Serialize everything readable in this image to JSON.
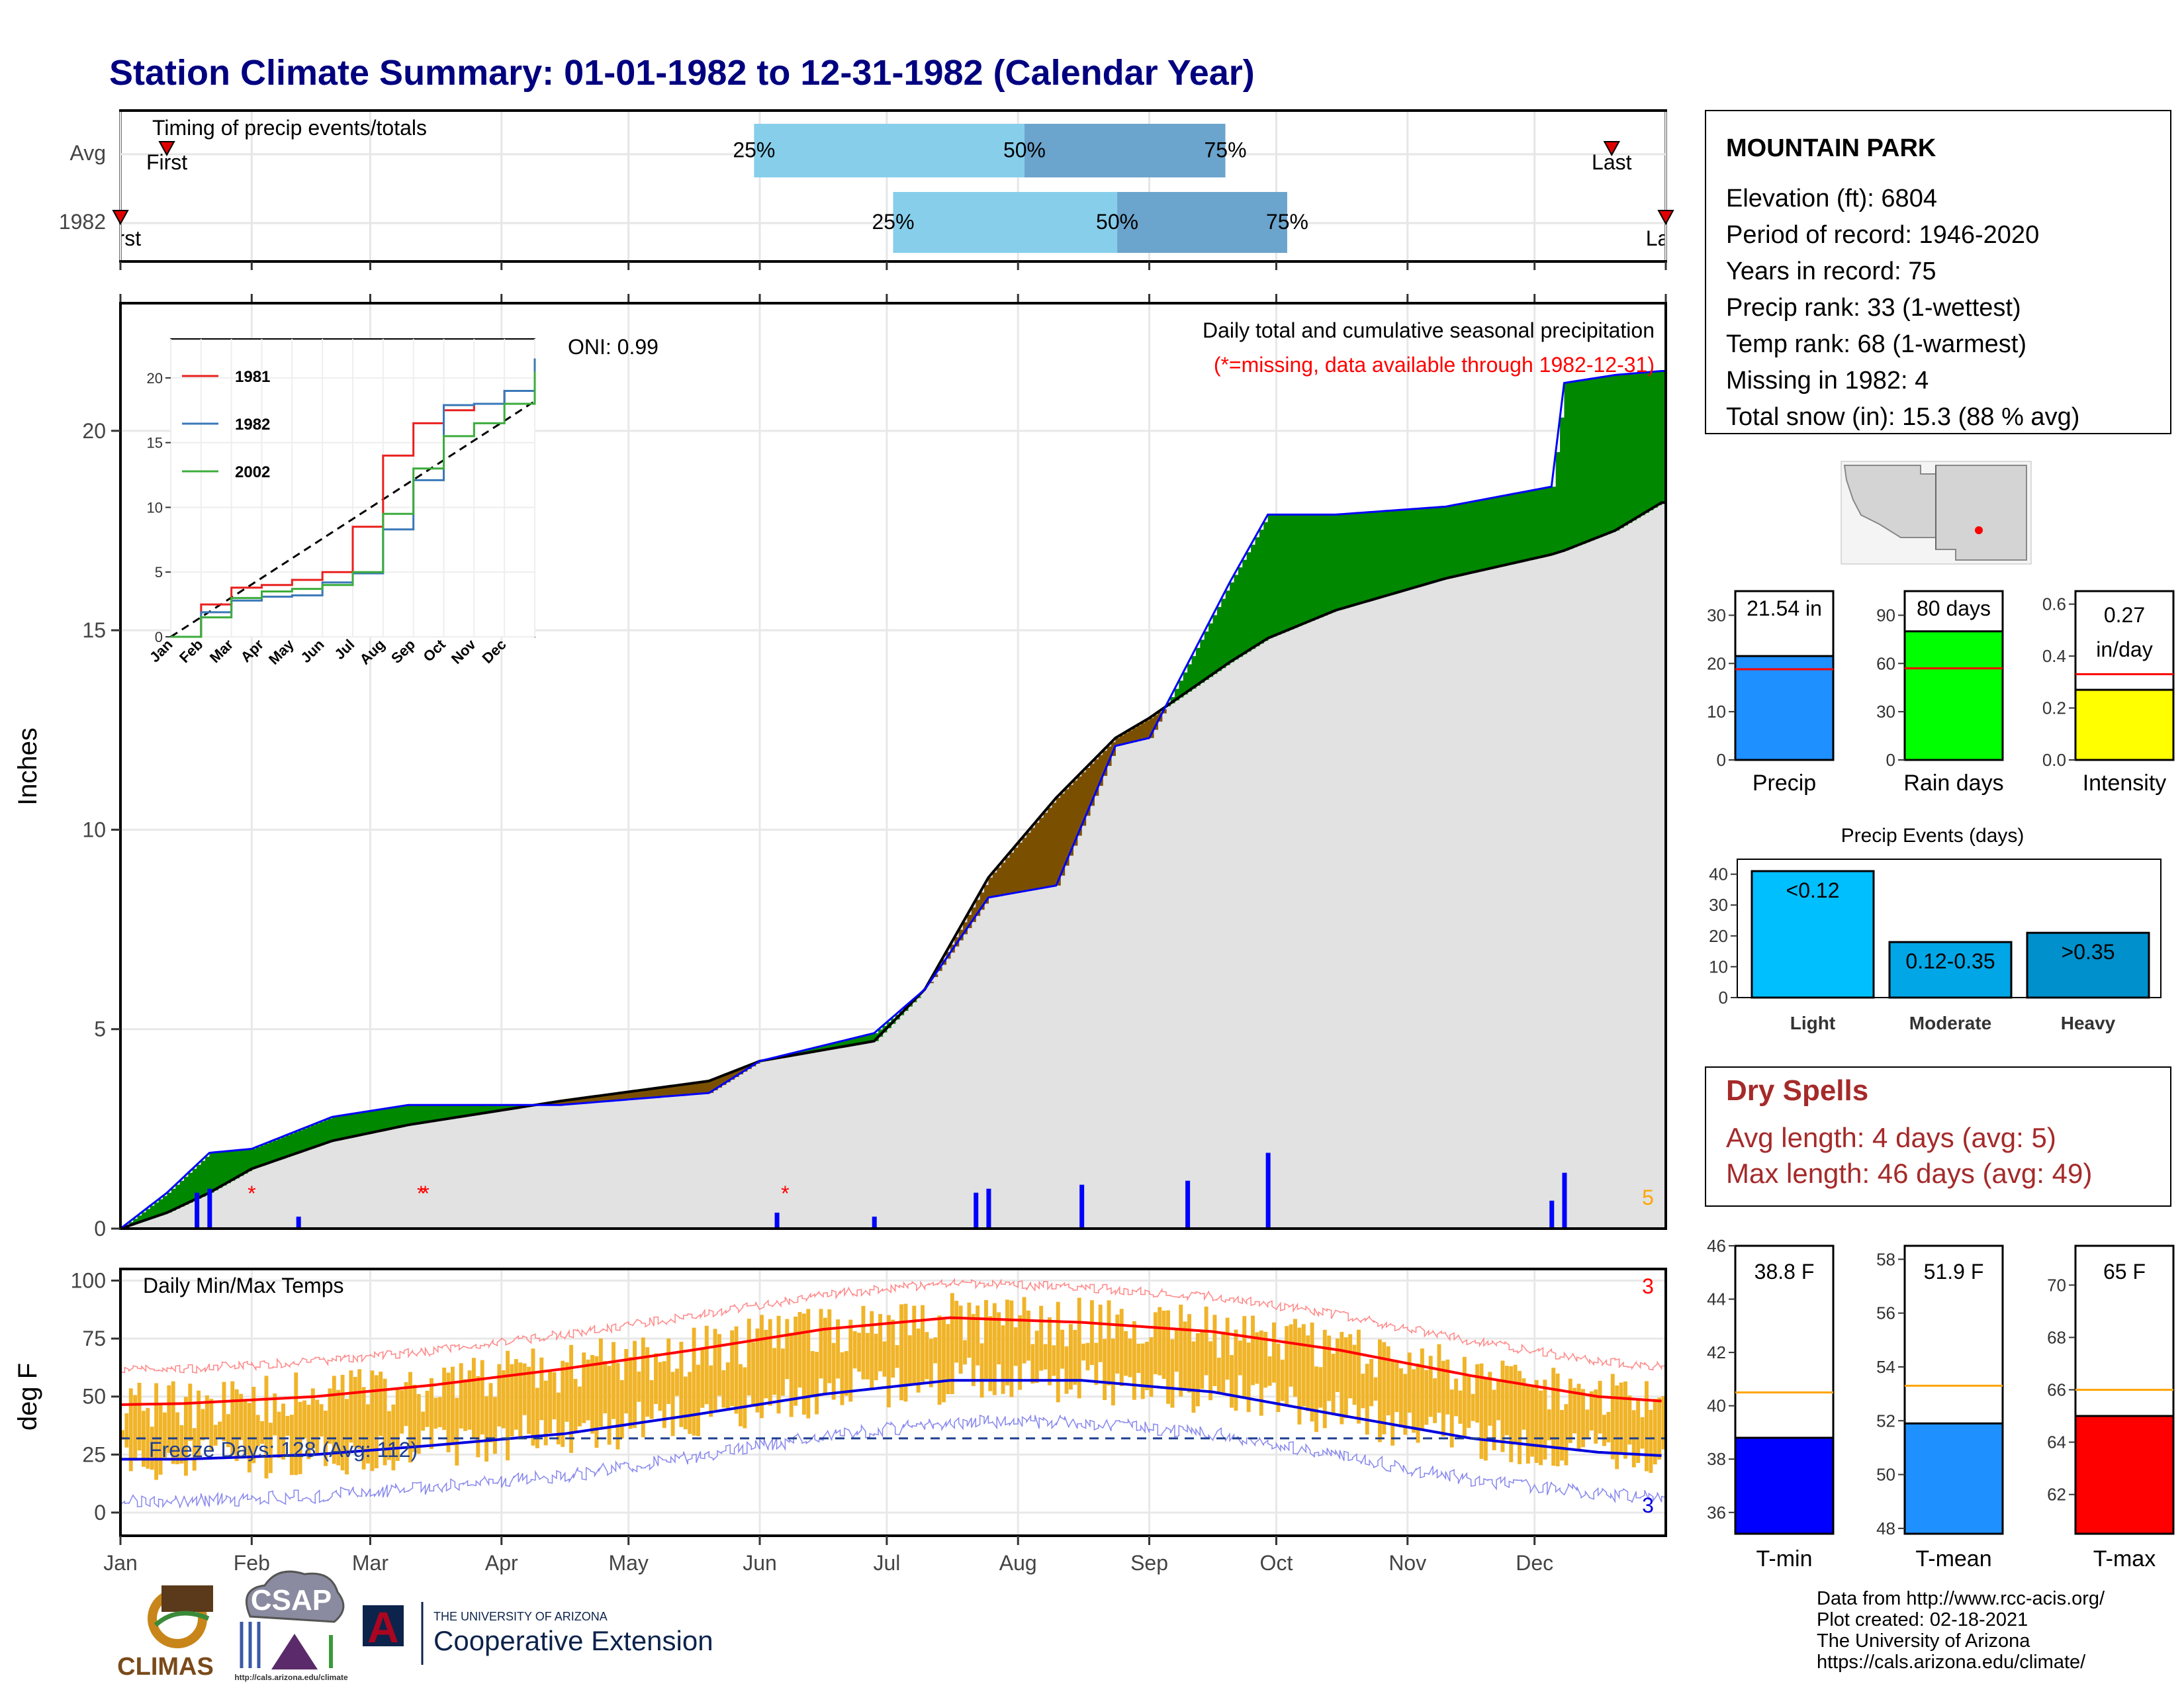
{
  "title": "Station Climate Summary: 01-01-1982 to 12-31-1982 (Calendar Year)",
  "colors": {
    "title": "#000080",
    "timing_q1": "#87ceeb",
    "timing_q2": "#6ba4cc",
    "precip_bars": "#0000ff",
    "above_avg_fill": "#008800",
    "below_avg_fill": "#7a5000",
    "normal_fill": "#e2e2e2",
    "tmax": "#ff0000",
    "tmin": "#0000dd",
    "temp_bars": "#f0b429",
    "freeze_line": "#1f3f8f",
    "dry_spells": "#a52a2a"
  },
  "timing": {
    "label": "Timing of precip events/totals",
    "rows": [
      {
        "name": "Avg",
        "first_label": "First",
        "last_label": "Last",
        "first": 0.03,
        "last": 0.965,
        "q25": 0.41,
        "q50": 0.585,
        "q75": 0.715,
        "lbl25": "25%",
        "lbl50": "50%",
        "lbl75": "75%"
      },
      {
        "name": "1982",
        "first_label": "First",
        "last_label": "Last",
        "first": 0.0,
        "last": 1.0,
        "q25": 0.5,
        "q50": 0.645,
        "q75": 0.755,
        "lbl25": "25%",
        "lbl50": "50%",
        "lbl75": "75%"
      }
    ]
  },
  "info": {
    "station": "MOUNTAIN PARK",
    "lines": [
      "Elevation (ft): 6804",
      "Period of record: 1946-2020",
      "Years in record: 75",
      "Precip rank: 33 (1-wettest)",
      "Temp rank: 68 (1-warmest)",
      "Missing in 1982: 4",
      "Total snow (in): 15.3 (88 % avg)"
    ]
  },
  "main_precip": {
    "title": "Daily total and cumulative seasonal precipitation",
    "subtitle": "(*=missing, data available through 1982-12-31)",
    "oni": "ONI: 0.99",
    "ylabel": "Inches",
    "yticks": [
      0,
      5,
      10,
      15,
      20
    ],
    "ylim": [
      0,
      23.2
    ],
    "count_label": "5"
  },
  "months": [
    "Jan",
    "Feb",
    "Mar",
    "Apr",
    "May",
    "Jun",
    "Jul",
    "Aug",
    "Sep",
    "Oct",
    "Nov",
    "Dec"
  ],
  "inset": {
    "legend": [
      "1981",
      "1982",
      "2002"
    ],
    "legend_colors": [
      "#e8201e",
      "#3a78b8",
      "#3cac3c"
    ],
    "yticks": [
      0,
      5,
      10,
      15,
      20
    ],
    "months": [
      "Jan",
      "Feb",
      "Mar",
      "Apr",
      "May",
      "Jun",
      "Jul",
      "Aug",
      "Sep",
      "Oct",
      "Nov",
      "Dec"
    ]
  },
  "temps": {
    "title": "Daily Min/Max Temps",
    "ylabel": "deg F",
    "yticks": [
      0,
      25,
      50,
      75,
      100
    ],
    "ylim": [
      -10,
      105
    ],
    "freeze_label": "Freeze Days: 128 (Avg: 112)",
    "freeze_value": 32,
    "count_top": "3",
    "count_bottom": "3"
  },
  "summary_bars": [
    {
      "label": "Precip",
      "value_label": "21.54 in",
      "value": 21.54,
      "avg": 18.8,
      "ymax": 35,
      "yticks": [
        0,
        10,
        20,
        30
      ],
      "color": "#1e90ff"
    },
    {
      "label": "Rain days",
      "value_label": "80 days",
      "value": 80,
      "avg": 57,
      "ymax": 105,
      "yticks": [
        0,
        30,
        60,
        90
      ],
      "color": "#00ff00"
    },
    {
      "label": "Intensity",
      "value_label": "0.27 in/day",
      "value_line1": "0.27",
      "value_line2": "in/day",
      "value": 0.27,
      "avg": 0.33,
      "ymax": 0.65,
      "yticks": [
        "0.0",
        "0.2",
        "0.4",
        "0.6"
      ],
      "color": "#ffff00"
    }
  ],
  "precip_events": {
    "title": "Precip Events (days)",
    "categories": [
      "Light",
      "Moderate",
      "Heavy"
    ],
    "labels": [
      "<0.12",
      "0.12-0.35",
      ">0.35"
    ],
    "values": [
      41,
      18,
      21
    ],
    "colors": [
      "#00bfff",
      "#00a6e6",
      "#0090cc"
    ],
    "ymax": 42,
    "yticks": [
      0,
      10,
      20,
      30,
      40
    ]
  },
  "dry_spells": {
    "title": "Dry Spells",
    "avg_line": "Avg length: 4 days (avg: 5)",
    "max_line": "Max length: 46 days (avg: 49)"
  },
  "temp_summaries": [
    {
      "label": "T-min",
      "value_label": "38.8 F",
      "value": 38.8,
      "avg": 40.5,
      "ymin": 35.2,
      "ymax": 46,
      "yticks": [
        36,
        38,
        40,
        42,
        44,
        46
      ],
      "color": "#0000ff"
    },
    {
      "label": "T-mean",
      "value_label": "51.9 F",
      "value": 51.9,
      "avg": 53.3,
      "ymin": 47.8,
      "ymax": 58.5,
      "yticks": [
        48,
        50,
        52,
        54,
        56,
        58
      ],
      "color": "#1e90ff"
    },
    {
      "label": "T-max",
      "value_label": "65 F",
      "value": 65,
      "avg": 66.0,
      "ymin": 60.5,
      "ymax": 71.5,
      "yticks": [
        62,
        64,
        66,
        68,
        70
      ],
      "color": "#ff0000"
    }
  ],
  "footer": {
    "logos": {
      "climas": "CLIMAS",
      "csap": "CSAP",
      "csap_url": "http://cals.arizona.edu/climate",
      "ua_line1": "THE UNIVERSITY OF ARIZONA",
      "ua_line2": "Cooperative Extension",
      "ua_letter": "A"
    },
    "credits": [
      "Data from http://www.rcc-acis.org/",
      "Plot created: 02-18-2021",
      "The University of Arizona",
      "https://cals.arizona.edu/climate/"
    ]
  },
  "chart_data": [
    {
      "type": "area",
      "title": "Daily total and cumulative seasonal precipitation",
      "ylabel": "Inches",
      "ylim": [
        0,
        23.2
      ],
      "x": [
        "1982-01-01",
        "1982-01-12",
        "1982-01-22",
        "1982-02-01",
        "1982-02-20",
        "1982-03-10",
        "1982-04-15",
        "1982-05-20",
        "1982-06-01",
        "1982-06-28",
        "1982-07-10",
        "1982-07-25",
        "1982-08-10",
        "1982-08-24",
        "1982-09-01",
        "1982-09-20",
        "1982-09-29",
        "1982-10-15",
        "1982-11-10",
        "1982-12-05",
        "1982-12-08",
        "1982-12-20",
        "1982-12-31"
      ],
      "series": [
        {
          "name": "1982",
          "values": [
            0,
            0.9,
            1.9,
            2.0,
            2.8,
            3.1,
            3.1,
            3.4,
            4.2,
            4.9,
            6.0,
            8.3,
            8.6,
            12.1,
            12.3,
            16.2,
            17.9,
            17.9,
            18.1,
            18.6,
            21.2,
            21.4,
            21.5
          ]
        },
        {
          "name": "Avg",
          "values": [
            0,
            0.4,
            0.9,
            1.5,
            2.2,
            2.6,
            3.2,
            3.7,
            4.2,
            4.7,
            6.0,
            8.8,
            10.8,
            12.3,
            12.8,
            14.2,
            14.8,
            15.5,
            16.3,
            16.9,
            17.0,
            17.5,
            18.2
          ]
        }
      ],
      "daily_precip": [
        {
          "x": "1982-01-19",
          "value": 0.9
        },
        {
          "x": "1982-01-22",
          "value": 1.0
        },
        {
          "x": "1982-02-12",
          "value": 0.3
        },
        {
          "x": "1982-06-05",
          "value": 0.4
        },
        {
          "x": "1982-06-28",
          "value": 0.3
        },
        {
          "x": "1982-07-22",
          "value": 0.9
        },
        {
          "x": "1982-07-25",
          "value": 1.0
        },
        {
          "x": "1982-08-16",
          "value": 1.1
        },
        {
          "x": "1982-09-10",
          "value": 1.2
        },
        {
          "x": "1982-09-29",
          "value": 1.9
        },
        {
          "x": "1982-12-05",
          "value": 0.7
        },
        {
          "x": "1982-12-08",
          "value": 1.4
        }
      ]
    },
    {
      "type": "line",
      "title": "Daily Min/Max Temps",
      "ylabel": "deg F",
      "ylim": [
        -10,
        105
      ],
      "x": [
        "Jan",
        "Feb",
        "Mar",
        "Apr",
        "May",
        "Jun",
        "Jul",
        "Aug",
        "Sep",
        "Oct",
        "Nov",
        "Dec",
        "Jan"
      ],
      "series": [
        {
          "name": "Avg max",
          "values": [
            47,
            50,
            55,
            62,
            70,
            79,
            84,
            82,
            78,
            70,
            59,
            50,
            46
          ]
        },
        {
          "name": "Avg min",
          "values": [
            23,
            25,
            29,
            34,
            42,
            51,
            57,
            57,
            52,
            42,
            32,
            26,
            23
          ]
        }
      ]
    },
    {
      "type": "line",
      "title": "",
      "x": [
        "Jan",
        "Feb",
        "Mar",
        "Apr",
        "May",
        "Jun",
        "Jul",
        "Aug",
        "Sep",
        "Oct",
        "Nov",
        "Dec",
        "Jan"
      ],
      "series": [
        {
          "name": "1981",
          "values": [
            0,
            2.5,
            3.8,
            4.0,
            4.4,
            5.0,
            8.5,
            14.0,
            16.5,
            17.5,
            18.0,
            19.0,
            19.5
          ]
        },
        {
          "name": "1982",
          "values": [
            0,
            1.9,
            2.8,
            3.1,
            3.2,
            4.2,
            4.9,
            8.3,
            12.1,
            17.9,
            18.0,
            19.0,
            21.5
          ]
        },
        {
          "name": "2002",
          "values": [
            0,
            1.5,
            3.0,
            3.5,
            3.7,
            4.0,
            5.0,
            9.5,
            13.0,
            15.5,
            16.5,
            18.0,
            20.5
          ]
        }
      ]
    }
  ]
}
